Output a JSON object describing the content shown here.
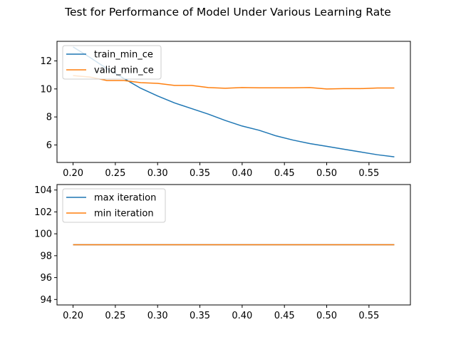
{
  "figure": {
    "title": "Test for Performance of Model Under Various Learning Rate"
  },
  "chart_data": [
    {
      "type": "line",
      "x": [
        0.2,
        0.22,
        0.24,
        0.26,
        0.28,
        0.3,
        0.32,
        0.34,
        0.36,
        0.38,
        0.4,
        0.42,
        0.44,
        0.46,
        0.48,
        0.5,
        0.52,
        0.54,
        0.56,
        0.58
      ],
      "series": [
        {
          "name": "train_min_ce",
          "color": "#1f77b4",
          "values": [
            13.0,
            12.25,
            11.45,
            10.75,
            10.05,
            9.5,
            9.0,
            8.6,
            8.2,
            7.75,
            7.35,
            7.05,
            6.65,
            6.35,
            6.1,
            5.9,
            5.7,
            5.5,
            5.3,
            5.15
          ]
        },
        {
          "name": "valid_min_ce",
          "color": "#ff7f0e",
          "values": [
            10.95,
            10.85,
            10.6,
            10.6,
            10.45,
            10.4,
            10.25,
            10.25,
            10.1,
            10.05,
            10.1,
            10.08,
            10.08,
            10.08,
            10.1,
            10.0,
            10.02,
            10.02,
            10.07,
            10.07
          ]
        }
      ],
      "xticks": [
        "0.20",
        "0.25",
        "0.30",
        "0.35",
        "0.40",
        "0.45",
        "0.50",
        "0.55"
      ],
      "yticks": [
        "6",
        "8",
        "10",
        "12"
      ],
      "xlim": [
        0.181,
        0.599
      ],
      "ylim": [
        4.75,
        13.4
      ],
      "legend_position": "upper-left",
      "grid": false
    },
    {
      "type": "line",
      "x": [
        0.2,
        0.22,
        0.24,
        0.26,
        0.28,
        0.3,
        0.32,
        0.34,
        0.36,
        0.38,
        0.4,
        0.42,
        0.44,
        0.46,
        0.48,
        0.5,
        0.52,
        0.54,
        0.56,
        0.58
      ],
      "series": [
        {
          "name": "max iteration",
          "color": "#1f77b4",
          "values": [
            99,
            99,
            99,
            99,
            99,
            99,
            99,
            99,
            99,
            99,
            99,
            99,
            99,
            99,
            99,
            99,
            99,
            99,
            99,
            99
          ]
        },
        {
          "name": "min iteration",
          "color": "#ff7f0e",
          "values": [
            99,
            99,
            99,
            99,
            99,
            99,
            99,
            99,
            99,
            99,
            99,
            99,
            99,
            99,
            99,
            99,
            99,
            99,
            99,
            99
          ]
        }
      ],
      "xticks": [
        "0.20",
        "0.25",
        "0.30",
        "0.35",
        "0.40",
        "0.45",
        "0.50",
        "0.55"
      ],
      "yticks": [
        "94",
        "96",
        "98",
        "100",
        "102",
        "104"
      ],
      "xlim": [
        0.181,
        0.599
      ],
      "ylim": [
        93.5,
        104.5
      ],
      "legend_position": "upper-left",
      "grid": false
    }
  ]
}
